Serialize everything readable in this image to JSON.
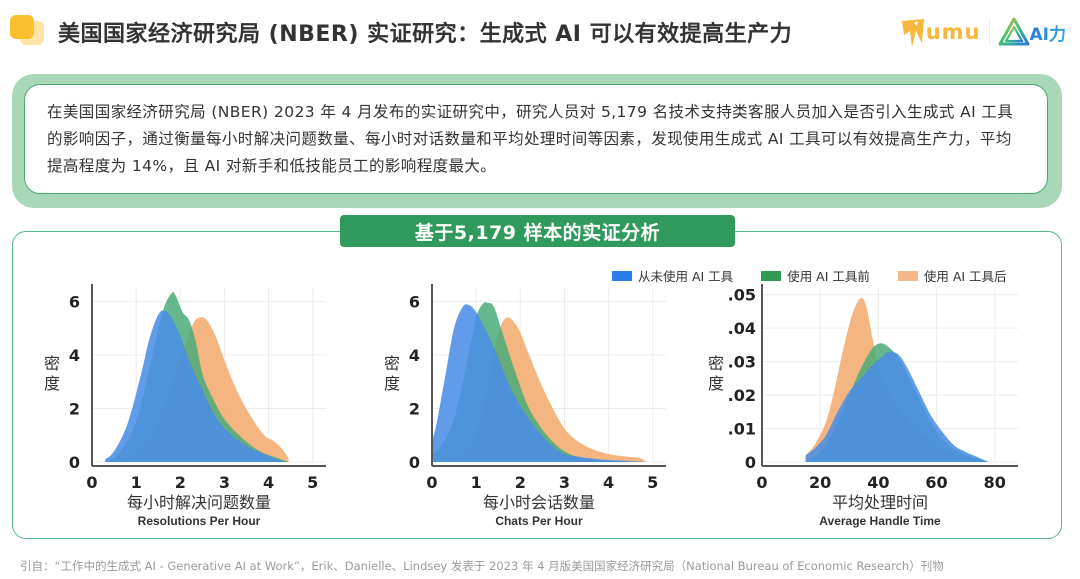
{
  "header": {
    "title": "美国国家经济研究局 (NBER) 实证研究：生成式 AI 可以有效提高生产力",
    "logos": {
      "umu": "umu",
      "ai_brand": "AI力"
    }
  },
  "summary": {
    "text": "在美国国家经济研究局 (NBER) 2023 年 4 月发布的实证研究中，研究人员对 5,179 名技术支持类客服人员加入是否引入生成式 AI 工具的影响因子，通过衡量每小时解决问题数量、每小时对话数量和平均处理时间等因素，发现使用生成式 AI 工具可以有效提高生产力，平均提高程度为 14%，且 AI 对新手和低技能员工的影响程度最大。"
  },
  "analysis": {
    "banner": "基于5,179 样本的实证分析"
  },
  "legend": [
    {
      "label": "从未使用 AI 工具",
      "color": "#2b7de9"
    },
    {
      "label": "使用 AI 工具前",
      "color": "#2e9a52"
    },
    {
      "label": "使用 AI 工具后",
      "color": "#f5b987"
    }
  ],
  "chart_data": [
    {
      "type": "area",
      "title": "",
      "xlabel": "每小时解决问题数量",
      "xlabel_en": "Resolutions Per Hour",
      "ylabel": "密度",
      "xlim": [
        0,
        5.3
      ],
      "ylim": [
        0,
        6.5
      ],
      "xticks": [
        "0",
        "1",
        "2",
        "3",
        "4",
        "5"
      ],
      "xtick_values": [
        0,
        1,
        2,
        3,
        4,
        5
      ],
      "yticks": [
        "0",
        "2",
        "4",
        "6"
      ],
      "ytick_values": [
        0,
        2,
        4,
        6
      ],
      "grid": true,
      "series": [
        {
          "name": "使用 AI 工具后",
          "color": "#f2a86a",
          "x": [
            0.3,
            0.6,
            1.0,
            1.4,
            1.8,
            2.1,
            2.3,
            2.45,
            2.6,
            2.8,
            3.0,
            3.3,
            3.6,
            3.9,
            4.1,
            4.3,
            4.45
          ],
          "y": [
            0.0,
            0.1,
            0.4,
            1.2,
            2.8,
            4.3,
            5.2,
            5.4,
            5.3,
            4.7,
            3.8,
            2.6,
            1.7,
            1.0,
            0.8,
            0.5,
            0.15
          ]
        },
        {
          "name": "使用 AI 工具前",
          "color": "#4aab78",
          "x": [
            0.3,
            0.6,
            1.0,
            1.3,
            1.6,
            1.8,
            1.9,
            2.05,
            2.2,
            2.35,
            2.5,
            2.7,
            3.0,
            3.4,
            3.8,
            4.2,
            4.45
          ],
          "y": [
            0.0,
            0.3,
            1.5,
            3.5,
            5.6,
            6.3,
            6.2,
            5.6,
            5.3,
            4.5,
            3.3,
            2.5,
            1.6,
            0.9,
            0.4,
            0.15,
            0.0
          ]
        },
        {
          "name": "从未使用 AI 工具",
          "color": "#4a8ee6",
          "x": [
            0.3,
            0.5,
            0.8,
            1.1,
            1.3,
            1.5,
            1.65,
            1.8,
            2.0,
            2.2,
            2.5,
            2.8,
            3.1,
            3.5,
            3.9,
            4.2,
            4.45
          ],
          "y": [
            0.1,
            0.4,
            1.4,
            3.2,
            4.6,
            5.5,
            5.65,
            5.4,
            4.7,
            3.8,
            2.7,
            1.7,
            1.1,
            0.6,
            0.3,
            0.1,
            0.0
          ]
        }
      ]
    },
    {
      "type": "area",
      "title": "",
      "xlabel": "每小时会话数量",
      "xlabel_en": "Chats Per Hour",
      "ylabel": "密度",
      "xlim": [
        0,
        5.3
      ],
      "ylim": [
        0,
        6.5
      ],
      "xticks": [
        "0",
        "1",
        "2",
        "3",
        "4",
        "5"
      ],
      "xtick_values": [
        0,
        1,
        2,
        3,
        4,
        5
      ],
      "yticks": [
        "0",
        "2",
        "4",
        "6"
      ],
      "ytick_values": [
        0,
        2,
        4,
        6
      ],
      "grid": true,
      "series": [
        {
          "name": "使用 AI 工具后",
          "color": "#f2a86a",
          "x": [
            0.0,
            0.4,
            0.8,
            1.1,
            1.3,
            1.5,
            1.7,
            1.95,
            2.2,
            2.5,
            2.9,
            3.2,
            3.6,
            4.0,
            4.4,
            4.7,
            4.85
          ],
          "y": [
            0.0,
            0.1,
            0.5,
            1.6,
            3.3,
            4.8,
            5.4,
            5.0,
            4.0,
            2.8,
            1.5,
            0.9,
            0.5,
            0.3,
            0.2,
            0.15,
            0.0
          ]
        },
        {
          "name": "使用 AI 工具前",
          "color": "#4aab78",
          "x": [
            0.0,
            0.2,
            0.5,
            0.8,
            1.0,
            1.15,
            1.25,
            1.4,
            1.6,
            1.9,
            2.2,
            2.6,
            3.0,
            3.4,
            3.8,
            4.3,
            4.85
          ],
          "y": [
            0.3,
            0.6,
            1.6,
            3.8,
            5.4,
            5.9,
            5.95,
            5.8,
            4.8,
            3.3,
            2.0,
            1.0,
            0.4,
            0.15,
            0.05,
            0.02,
            0.0
          ]
        },
        {
          "name": "从未使用 AI 工具",
          "color": "#4a8ee6",
          "x": [
            0.0,
            0.1,
            0.3,
            0.5,
            0.7,
            0.85,
            1.0,
            1.2,
            1.5,
            1.8,
            2.2,
            2.6,
            3.0,
            3.3,
            3.8,
            4.3,
            4.85
          ],
          "y": [
            0.8,
            1.4,
            3.2,
            5.0,
            5.8,
            5.85,
            5.6,
            5.0,
            3.9,
            2.7,
            1.6,
            0.8,
            0.3,
            0.2,
            0.1,
            0.05,
            0.0
          ]
        }
      ]
    },
    {
      "type": "area",
      "title": "",
      "xlabel": "平均处理时间",
      "xlabel_en": "Average Handle Time",
      "ylabel": "密度",
      "xlim": [
        0,
        88
      ],
      "ylim": [
        0,
        0.052
      ],
      "xticks": [
        "0",
        "20",
        "40",
        "60",
        "80"
      ],
      "xtick_values": [
        0,
        20,
        40,
        60,
        80
      ],
      "yticks": [
        "0",
        ".01",
        ".02",
        ".03",
        ".04",
        ".05"
      ],
      "ytick_values": [
        0,
        0.01,
        0.02,
        0.03,
        0.04,
        0.05
      ],
      "grid": true,
      "series": [
        {
          "name": "使用 AI 工具后",
          "color": "#f2a86a",
          "x": [
            15,
            18,
            22,
            25,
            28,
            31,
            33,
            34.5,
            36,
            38,
            40,
            43,
            47,
            52,
            57,
            62,
            68,
            75,
            78
          ],
          "y": [
            0.002,
            0.005,
            0.012,
            0.022,
            0.034,
            0.044,
            0.048,
            0.049,
            0.046,
            0.037,
            0.029,
            0.022,
            0.016,
            0.011,
            0.007,
            0.004,
            0.002,
            0.0005,
            0.0
          ]
        },
        {
          "name": "使用 AI 工具前",
          "color": "#4aab78",
          "x": [
            15,
            20,
            25,
            30,
            34,
            38,
            41,
            44,
            47,
            50,
            54,
            58,
            62,
            66,
            70,
            74,
            78
          ],
          "y": [
            0.0,
            0.003,
            0.01,
            0.02,
            0.028,
            0.034,
            0.0355,
            0.034,
            0.031,
            0.026,
            0.019,
            0.012,
            0.007,
            0.004,
            0.002,
            0.001,
            0.0
          ]
        },
        {
          "name": "从未使用 AI 工具",
          "color": "#4a8ee6",
          "x": [
            15,
            18,
            22,
            26,
            30,
            34,
            38,
            42,
            44,
            47,
            50,
            54,
            58,
            62,
            66,
            70,
            74,
            78
          ],
          "y": [
            0.002,
            0.004,
            0.008,
            0.015,
            0.021,
            0.025,
            0.029,
            0.032,
            0.033,
            0.032,
            0.028,
            0.021,
            0.014,
            0.009,
            0.005,
            0.003,
            0.0015,
            0.0
          ]
        }
      ]
    }
  ],
  "citation": "引自：“工作中的生成式 AI - Generative AI at Work”，Erik、Danielle、Lindsey 发表于 2023 年 4 月版美国国家经济研究局（National Bureau of Economic Research）刊物"
}
